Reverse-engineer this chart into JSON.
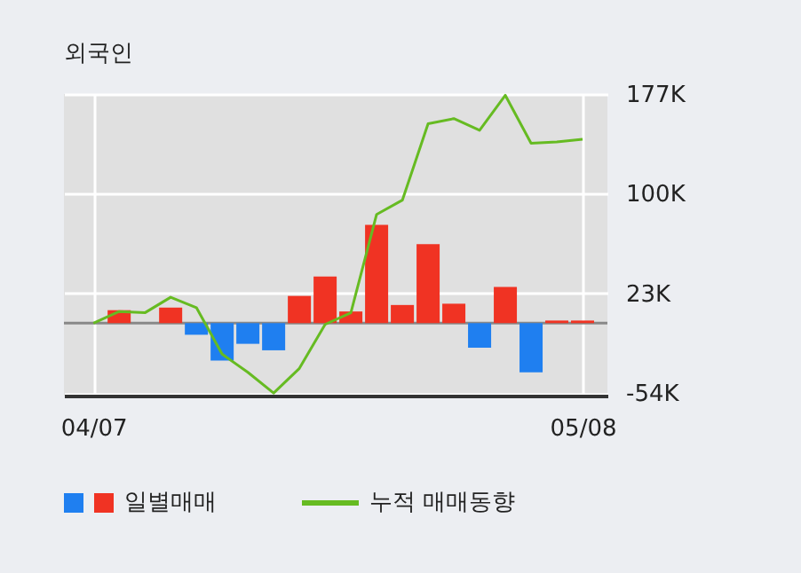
{
  "chart_data": {
    "type": "bar",
    "title": "외국인",
    "categories": [
      "04/07",
      null,
      null,
      null,
      null,
      null,
      null,
      null,
      null,
      null,
      null,
      null,
      null,
      null,
      null,
      null,
      null,
      null,
      null,
      "05/08"
    ],
    "series": [
      {
        "name": "일별매매",
        "axis": "y2",
        "colors": [
          "#f03323",
          "#f03323",
          "#f03323",
          "#f03323",
          "#1f7ff0",
          "#1f7ff0",
          "#1f7ff0",
          "#1f7ff0",
          "#f03323",
          "#f03323",
          "#f03323",
          "#f03323",
          "#f03323",
          "#f03323",
          "#f03323",
          "#1f7ff0",
          "#f03323",
          "#1f7ff0",
          "#f03323",
          "#f03323"
        ],
        "values": [
          0,
          10,
          0,
          12,
          -9,
          -29,
          -16,
          -21,
          21,
          36,
          9,
          76,
          14,
          61,
          15,
          -19,
          28,
          -38,
          2,
          2
        ]
      },
      {
        "name": "누적 매매동향",
        "type": "line",
        "axis": "y2",
        "color": "#66bb22",
        "values": [
          0,
          9,
          8,
          20,
          12,
          -24,
          -38,
          -54,
          -35,
          -1,
          8,
          84,
          95,
          154,
          158,
          149,
          176,
          139,
          140,
          142
        ]
      }
    ],
    "y2lim": [
      -56,
      177
    ],
    "y2ticks": [
      {
        "value": 177,
        "label": "177K"
      },
      {
        "value": 100,
        "label": "100K"
      },
      {
        "value": 23,
        "label": "23K"
      },
      {
        "value": -54,
        "label": "-54K"
      }
    ],
    "ref_lines": [
      {
        "axis": "y2",
        "value": 0,
        "color": "#888888"
      }
    ],
    "grid": true,
    "legend": "bottom"
  }
}
